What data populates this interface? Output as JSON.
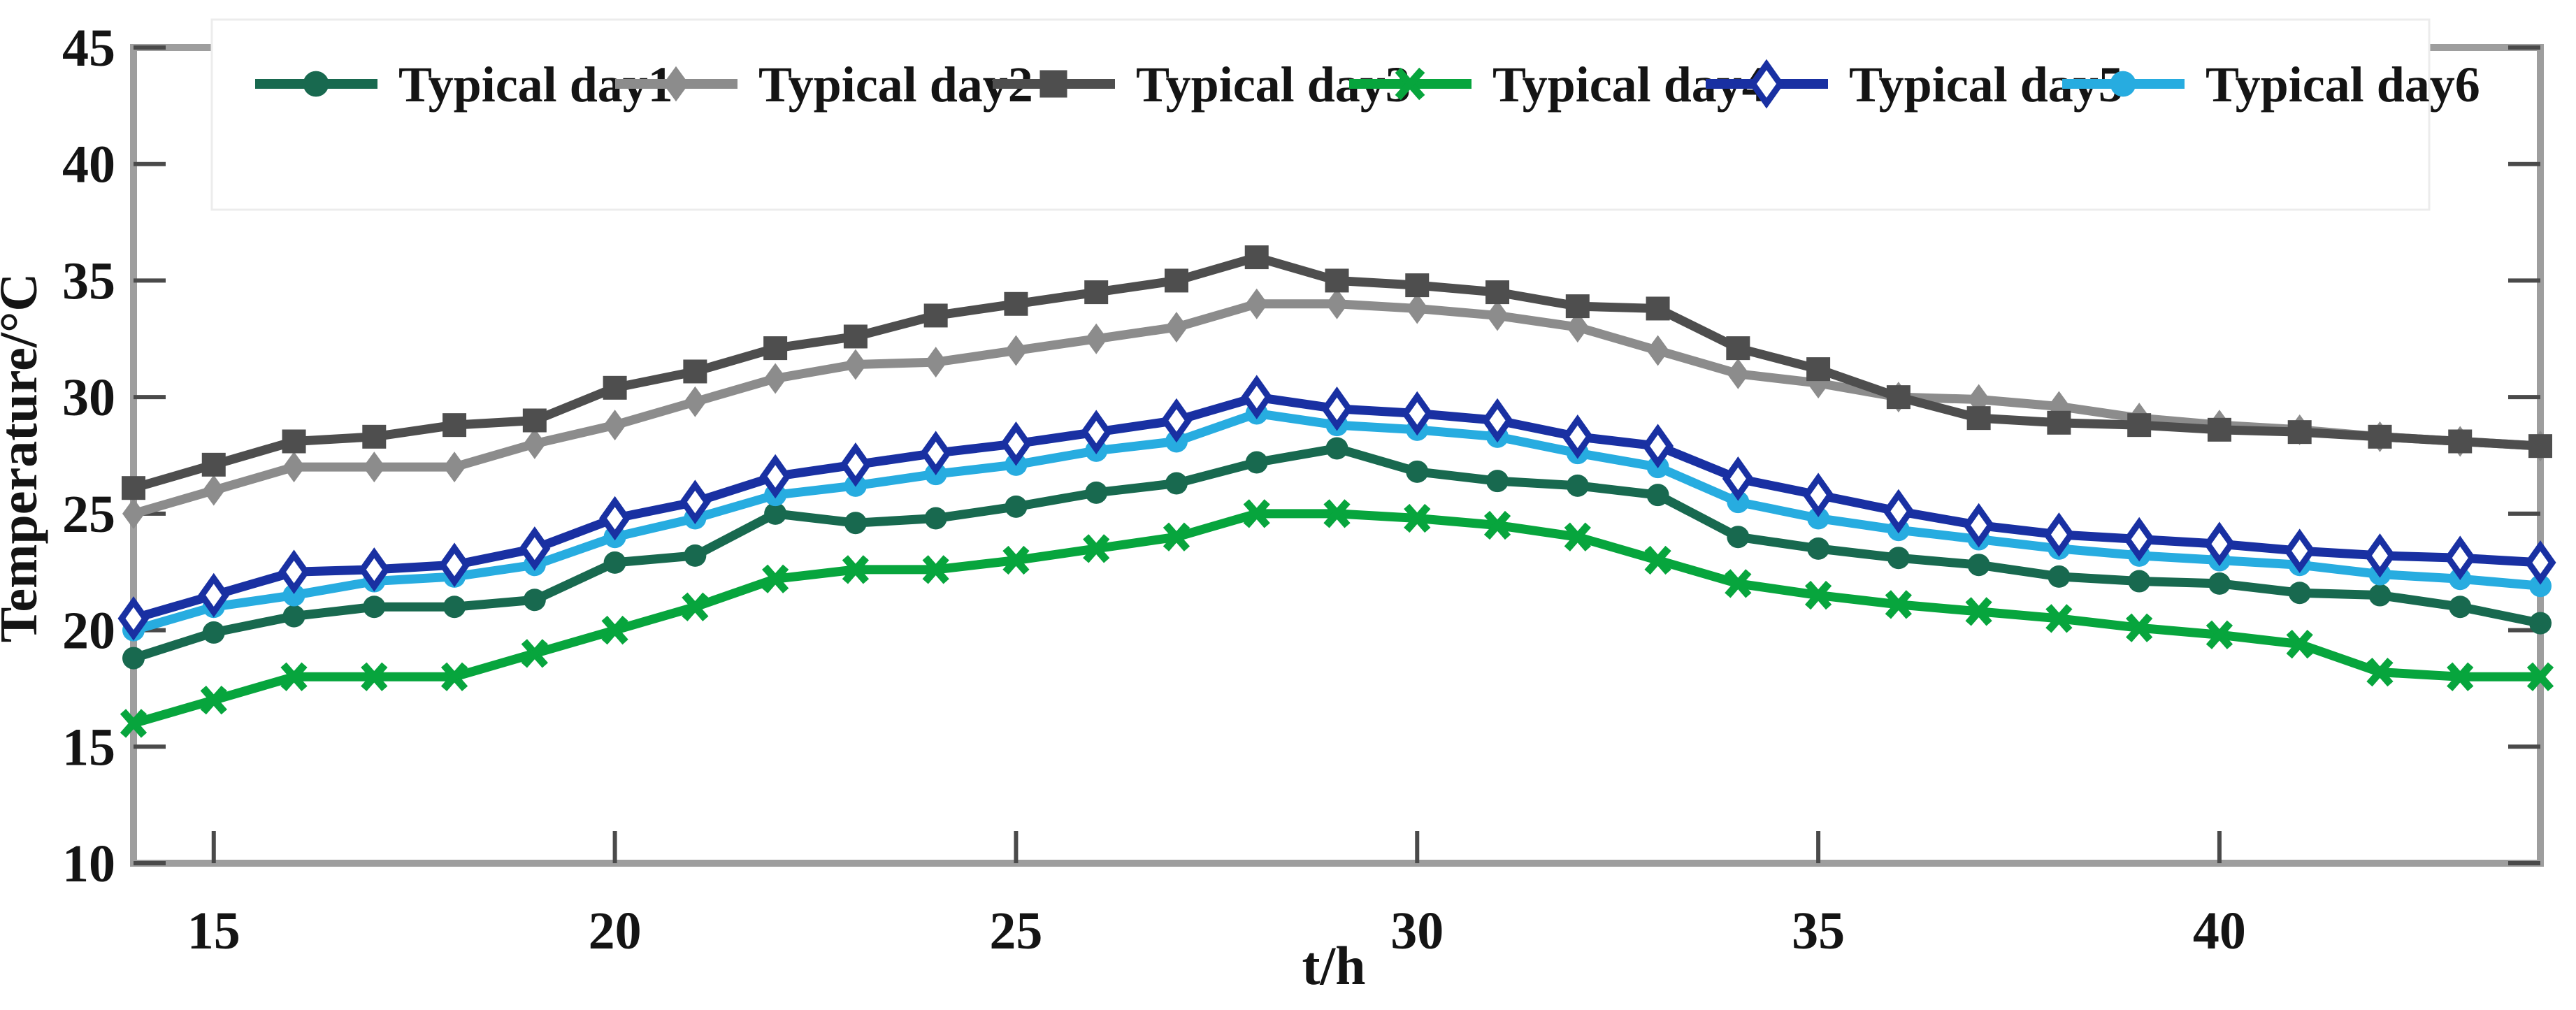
{
  "chart_data": {
    "type": "line",
    "title": "",
    "xlabel": "t/h",
    "ylabel": "Temperature/°C",
    "xlim": [
      14,
      44
    ],
    "ylim": [
      10,
      45
    ],
    "xticks": [
      15,
      20,
      25,
      30,
      35,
      40
    ],
    "yticks": [
      10,
      15,
      20,
      25,
      30,
      35,
      40,
      45
    ],
    "grid": false,
    "legend_position": "top-inside-horizontal",
    "axis_color": "#9e9e9e",
    "tick_color": "#4a4a4a",
    "x": [
      14,
      15,
      16,
      17,
      18,
      19,
      20,
      21,
      22,
      23,
      24,
      25,
      26,
      27,
      28,
      29,
      30,
      31,
      32,
      33,
      34,
      35,
      36,
      37,
      38,
      39,
      40,
      41,
      42,
      43,
      44
    ],
    "series": [
      {
        "name": "Typical day1",
        "color": "#18694f",
        "marker": "circle",
        "values": [
          18.8,
          19.9,
          20.6,
          21.0,
          21.0,
          21.3,
          22.9,
          23.2,
          25.0,
          24.6,
          24.8,
          25.3,
          25.9,
          26.3,
          27.2,
          27.8,
          26.8,
          26.4,
          26.2,
          25.8,
          24.0,
          23.5,
          23.1,
          22.8,
          22.3,
          22.1,
          22.0,
          21.6,
          21.5,
          21.0,
          20.3
        ]
      },
      {
        "name": "Typical day2",
        "color": "#8c8c8c",
        "marker": "diamond",
        "values": [
          25.0,
          26.0,
          27.0,
          27.0,
          27.0,
          28.0,
          28.8,
          29.8,
          30.8,
          31.4,
          31.5,
          32.0,
          32.5,
          33.0,
          34.0,
          34.0,
          33.8,
          33.5,
          33.0,
          32.0,
          31.0,
          30.6,
          30.0,
          29.9,
          29.6,
          29.1,
          28.8,
          28.6,
          28.3,
          28.1,
          27.9
        ]
      },
      {
        "name": "Typical day3",
        "color": "#4e4e4e",
        "marker": "square",
        "values": [
          26.1,
          27.1,
          28.1,
          28.3,
          28.8,
          29.0,
          30.4,
          31.1,
          32.1,
          32.6,
          33.5,
          34.0,
          34.5,
          35.0,
          36.0,
          35.0,
          34.8,
          34.5,
          33.9,
          33.8,
          32.1,
          31.2,
          30.0,
          29.1,
          28.9,
          28.8,
          28.6,
          28.5,
          28.3,
          28.1,
          27.9
        ]
      },
      {
        "name": "Typical day4",
        "color": "#07a53d",
        "marker": "x",
        "values": [
          16.0,
          17.0,
          18.0,
          18.0,
          18.0,
          19.0,
          20.0,
          21.0,
          22.2,
          22.6,
          22.6,
          23.0,
          23.5,
          24.0,
          25.0,
          25.0,
          24.8,
          24.5,
          24.0,
          23.0,
          22.0,
          21.5,
          21.1,
          20.8,
          20.5,
          20.1,
          19.8,
          19.4,
          18.2,
          18.0,
          18.0
        ]
      },
      {
        "name": "Typical day5",
        "color": "#1930a2",
        "marker": "diamond-open",
        "values": [
          20.5,
          21.5,
          22.5,
          22.6,
          22.8,
          23.5,
          24.8,
          25.5,
          26.6,
          27.1,
          27.6,
          28.0,
          28.5,
          29.0,
          30.0,
          29.5,
          29.3,
          29.0,
          28.3,
          27.9,
          26.5,
          25.8,
          25.1,
          24.5,
          24.1,
          23.9,
          23.7,
          23.4,
          23.2,
          23.1,
          22.9
        ]
      },
      {
        "name": "Typical day6",
        "color": "#27ace0",
        "marker": "circle",
        "values": [
          20.0,
          21.0,
          21.5,
          22.1,
          22.3,
          22.8,
          24.0,
          24.8,
          25.8,
          26.2,
          26.7,
          27.1,
          27.7,
          28.1,
          29.3,
          28.8,
          28.6,
          28.3,
          27.6,
          27.0,
          25.5,
          24.8,
          24.3,
          23.9,
          23.5,
          23.2,
          23.0,
          22.8,
          22.4,
          22.2,
          21.9
        ]
      }
    ]
  }
}
